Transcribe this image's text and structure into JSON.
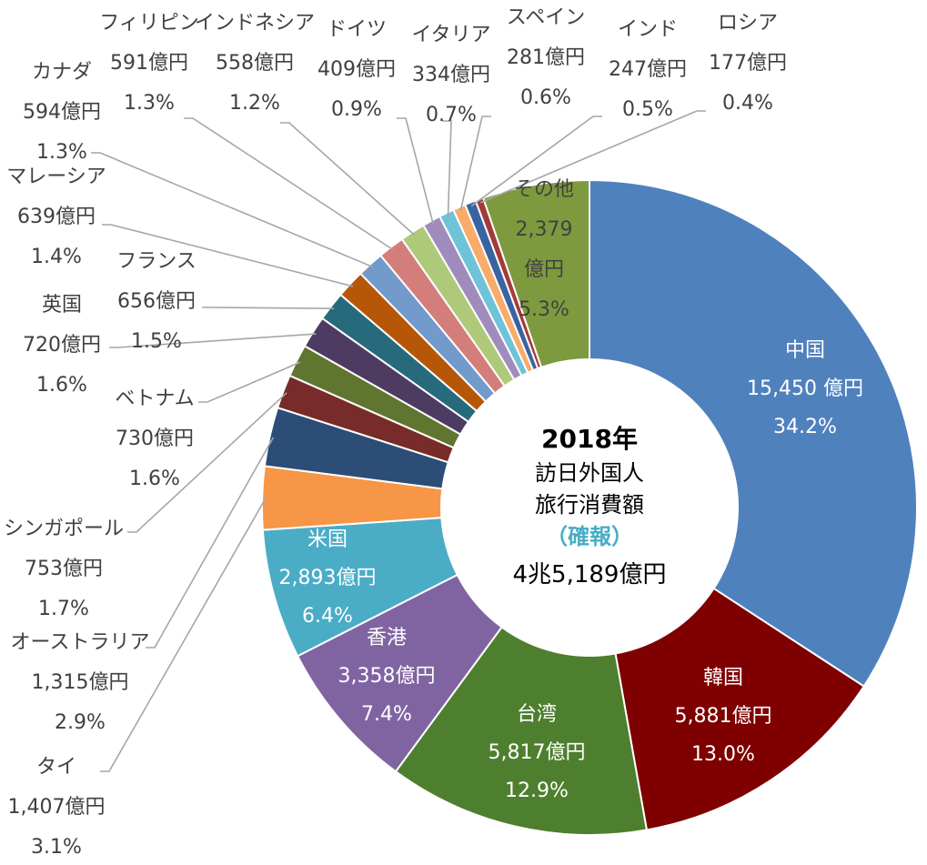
{
  "chart_data": {
    "type": "pie",
    "variant": "donut",
    "center": {
      "year": "2018年",
      "line1": "訪日外国人",
      "line2": "旅行消費額",
      "line3": "（確報）",
      "total": "4兆5,189億円"
    },
    "slices": [
      {
        "name": "中国",
        "value": 15450,
        "value_label": "15,450 億円",
        "pct": "34.2%",
        "color": "#4f81bd"
      },
      {
        "name": "韓国",
        "value": 5881,
        "value_label": "5,881億円",
        "pct": "13.0%",
        "color": "#7f0000"
      },
      {
        "name": "台湾",
        "value": 5817,
        "value_label": "5,817億円",
        "pct": "12.9%",
        "color": "#4e7f2f"
      },
      {
        "name": "香港",
        "value": 3358,
        "value_label": "3,358億円",
        "pct": "7.4%",
        "color": "#8064a2"
      },
      {
        "name": "米国",
        "value": 2893,
        "value_label": "2,893億円",
        "pct": "6.4%",
        "color": "#4bacc6"
      },
      {
        "name": "タイ",
        "value": 1407,
        "value_label": "1,407億円",
        "pct": "3.1%",
        "color": "#f79646"
      },
      {
        "name": "オーストラリア",
        "value": 1315,
        "value_label": "1,315億円",
        "pct": "2.9%",
        "color": "#2c4d75"
      },
      {
        "name": "シンガポール",
        "value": 753,
        "value_label": "753億円",
        "pct": "1.7%",
        "color": "#772c2a"
      },
      {
        "name": "ベトナム",
        "value": 730,
        "value_label": "730億円",
        "pct": "1.6%",
        "color": "#5f7530"
      },
      {
        "name": "英国",
        "value": 720,
        "value_label": "720億円",
        "pct": "1.6%",
        "color": "#4d3b62"
      },
      {
        "name": "フランス",
        "value": 656,
        "value_label": "656億円",
        "pct": "1.5%",
        "color": "#276a7c"
      },
      {
        "name": "マレーシア",
        "value": 639,
        "value_label": "639億円",
        "pct": "1.4%",
        "color": "#b65708"
      },
      {
        "name": "カナダ",
        "value": 594,
        "value_label": "594億円",
        "pct": "1.3%",
        "color": "#729aca"
      },
      {
        "name": "フィリピン",
        "value": 591,
        "value_label": "591億円",
        "pct": "1.3%",
        "color": "#d47e7c"
      },
      {
        "name": "インドネシア",
        "value": 558,
        "value_label": "558億円",
        "pct": "1.2%",
        "color": "#afc97a"
      },
      {
        "name": "ドイツ",
        "value": 409,
        "value_label": "409億円",
        "pct": "0.9%",
        "color": "#a08cbc"
      },
      {
        "name": "イタリア",
        "value": 334,
        "value_label": "334億円",
        "pct": "0.7%",
        "color": "#6fc3d9"
      },
      {
        "name": "スペイン",
        "value": 281,
        "value_label": "281億円",
        "pct": "0.6%",
        "color": "#f9ab6b"
      },
      {
        "name": "インド",
        "value": 247,
        "value_label": "247億円",
        "pct": "0.5%",
        "color": "#3a64a0"
      },
      {
        "name": "ロシア",
        "value": 177,
        "value_label": "177億円",
        "pct": "0.4%",
        "color": "#a33b38"
      },
      {
        "name": "その他",
        "value": 2379,
        "value_label": "2,379億円",
        "pct": "5.3%",
        "color": "#7e9a3e"
      }
    ]
  }
}
